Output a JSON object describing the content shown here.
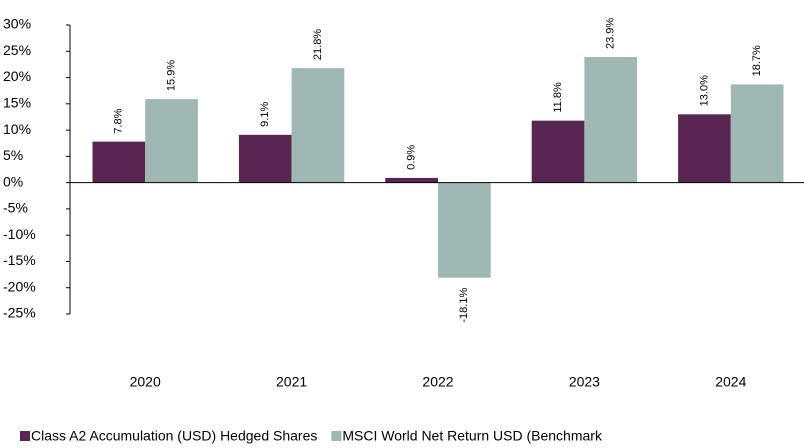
{
  "chart_data": {
    "type": "bar",
    "categories": [
      "2020",
      "2021",
      "2022",
      "2023",
      "2024"
    ],
    "series": [
      {
        "name": "Class A2 Accumulation (USD) Hedged Shares",
        "color": "#582650",
        "values": [
          7.8,
          9.1,
          0.9,
          11.8,
          13.0
        ],
        "value_labels": [
          "7.8%",
          "9.1%",
          "0.9%",
          "11.8%",
          "13.0%"
        ]
      },
      {
        "name": "MSCI World Net Return USD (Benchmark",
        "color": "#9fb8b3",
        "values": [
          15.9,
          21.8,
          -18.1,
          23.9,
          18.7
        ],
        "value_labels": [
          "15.9%",
          "21.8%",
          "-18.1%",
          "23.9%",
          "18.7%"
        ]
      }
    ],
    "ylim": [
      -25,
      30
    ],
    "yticks": [
      {
        "value": -25,
        "label": "-25%"
      },
      {
        "value": -20,
        "label": "-20%"
      },
      {
        "value": -15,
        "label": "-15%"
      },
      {
        "value": -10,
        "label": "-10%"
      },
      {
        "value": -5,
        "label": "-5%"
      },
      {
        "value": 0,
        "label": "0%"
      },
      {
        "value": 5,
        "label": "5%"
      },
      {
        "value": 10,
        "label": "10%"
      },
      {
        "value": 15,
        "label": "15%"
      },
      {
        "value": 20,
        "label": "20%"
      },
      {
        "value": 25,
        "label": "25%"
      },
      {
        "value": 30,
        "label": "30%"
      }
    ],
    "grid": false
  }
}
